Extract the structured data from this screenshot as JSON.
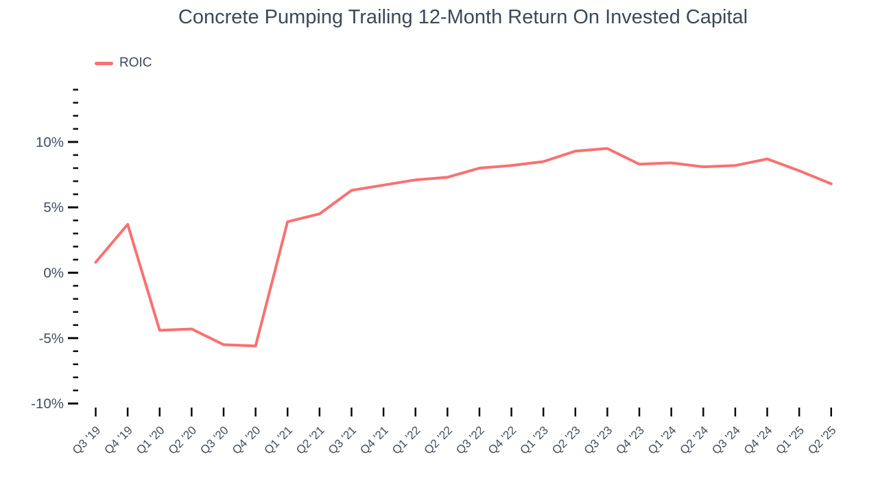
{
  "chart": {
    "title": "Concrete Pumping Trailing 12-Month Return On Invested Capital",
    "legend": [
      "ROIC"
    ]
  },
  "chart_data": {
    "type": "line",
    "title": "Concrete Pumping Trailing 12-Month Return On Invested Capital",
    "legend_position": "top-left",
    "grid": false,
    "categories": [
      "Q3 '19",
      "Q4 '19",
      "Q1 '20",
      "Q2 '20",
      "Q3 '20",
      "Q4 '20",
      "Q1 '21",
      "Q2 '21",
      "Q3 '21",
      "Q4 '21",
      "Q1 '22",
      "Q2 '22",
      "Q3 '22",
      "Q4 '22",
      "Q1 '23",
      "Q2 '23",
      "Q3 '23",
      "Q4 '23",
      "Q1 '24",
      "Q2 '24",
      "Q3 '24",
      "Q4 '24",
      "Q1 '25",
      "Q2 '25"
    ],
    "series": [
      {
        "name": "ROIC",
        "values": [
          0.8,
          3.7,
          -4.4,
          -4.3,
          -5.5,
          -5.6,
          3.9,
          4.5,
          6.3,
          6.7,
          7.1,
          7.3,
          8.0,
          8.2,
          8.5,
          9.3,
          9.5,
          8.3,
          8.4,
          8.1,
          8.2,
          8.7,
          7.8,
          6.8
        ]
      }
    ],
    "unit": "%",
    "ylim": [
      -10,
      14
    ],
    "ytick_minor_step": 1,
    "yticks": [
      {
        "value": 10,
        "label": "10%"
      },
      {
        "value": 5,
        "label": "5%"
      },
      {
        "value": 0,
        "label": "0%"
      },
      {
        "value": -5,
        "label": "-5%"
      },
      {
        "value": -10,
        "label": "-10%"
      }
    ],
    "colors": {
      "line": "#f87171",
      "tick": "#0a0a0a",
      "label": "#414e5e",
      "title": "#3c4858"
    }
  }
}
